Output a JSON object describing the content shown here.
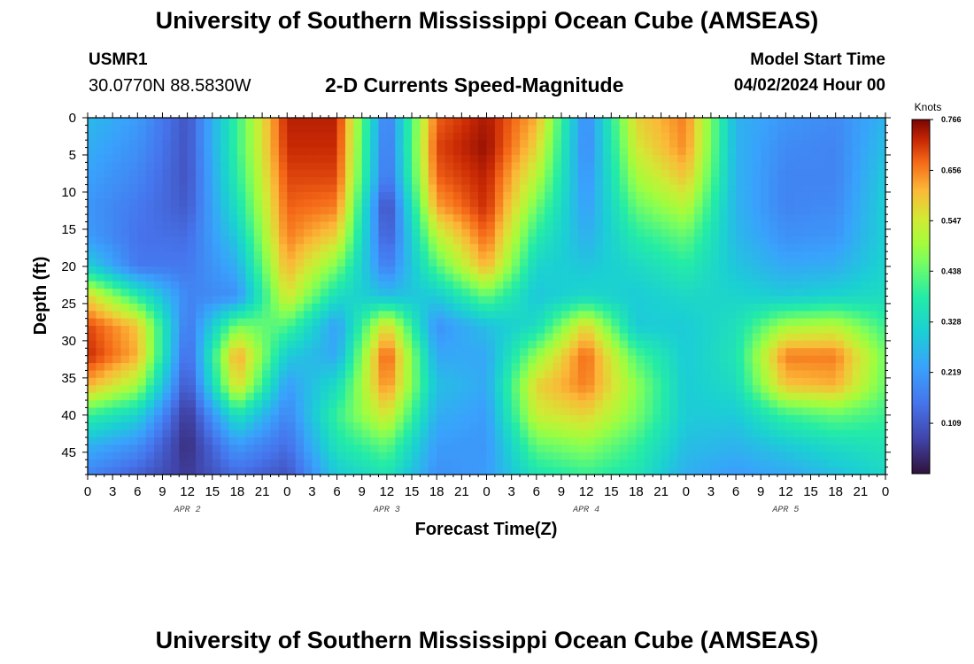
{
  "header": {
    "title": "University of Southern Mississippi Ocean Cube (AMSEAS)",
    "station_id": "USMR1",
    "station_coords": "30.0770N  88.5830W",
    "plot_title": "2-D Currents Speed-Magnitude",
    "model_start_label": "Model Start Time",
    "model_start_time": "04/02/2024 Hour 00"
  },
  "footer": {
    "title": "University of Southern Mississippi Ocean Cube (AMSEAS)"
  },
  "chart_data": {
    "type": "heatmap",
    "title": "2-D Currents Speed-Magnitude",
    "xlabel": "Forecast Time(Z)",
    "ylabel": "Depth (ft)",
    "x_ticks": [
      "0",
      "3",
      "6",
      "9",
      "12",
      "15",
      "18",
      "21",
      "0",
      "3",
      "6",
      "9",
      "12",
      "15",
      "18",
      "21",
      "0",
      "3",
      "6",
      "9",
      "12",
      "15",
      "18",
      "21",
      "0",
      "3",
      "6",
      "9",
      "12",
      "15",
      "18",
      "21",
      "0"
    ],
    "x_range_hours": [
      0,
      96
    ],
    "day_labels": [
      {
        "label": "APR 2",
        "hour": 12
      },
      {
        "label": "APR 3",
        "hour": 36
      },
      {
        "label": "APR 4",
        "hour": 60
      },
      {
        "label": "APR 5",
        "hour": 84
      }
    ],
    "y_ticks": [
      0,
      5,
      10,
      15,
      20,
      25,
      30,
      35,
      40,
      45
    ],
    "y_range_ft": [
      0,
      48
    ],
    "colorbar": {
      "title": "Knots",
      "min": 0.0,
      "max": 0.766,
      "ticks": [
        "0.766",
        "0.656",
        "0.547",
        "0.438",
        "0.328",
        "0.219",
        "0.109"
      ],
      "tick_values": [
        0.766,
        0.656,
        0.547,
        0.438,
        0.328,
        0.219,
        0.109
      ]
    },
    "speed_grid": {
      "units": "knots",
      "hours": [
        0,
        6,
        12,
        18,
        24,
        30,
        36,
        42,
        48,
        54,
        60,
        66,
        72,
        78,
        84,
        90,
        96
      ],
      "depths_ft": [
        0,
        4,
        8,
        12,
        16,
        20,
        24,
        28,
        32,
        36,
        40,
        44,
        48
      ],
      "values": [
        [
          0.27,
          0.22,
          0.1,
          0.4,
          0.73,
          0.73,
          0.15,
          0.68,
          0.74,
          0.62,
          0.18,
          0.58,
          0.66,
          0.26,
          0.21,
          0.19,
          0.26
        ],
        [
          0.25,
          0.2,
          0.1,
          0.4,
          0.72,
          0.72,
          0.14,
          0.7,
          0.75,
          0.58,
          0.18,
          0.55,
          0.65,
          0.26,
          0.19,
          0.18,
          0.28
        ],
        [
          0.23,
          0.18,
          0.1,
          0.38,
          0.7,
          0.7,
          0.13,
          0.68,
          0.73,
          0.52,
          0.2,
          0.5,
          0.6,
          0.26,
          0.18,
          0.18,
          0.3
        ],
        [
          0.21,
          0.16,
          0.11,
          0.35,
          0.68,
          0.66,
          0.07,
          0.63,
          0.72,
          0.45,
          0.22,
          0.44,
          0.52,
          0.26,
          0.18,
          0.19,
          0.31
        ],
        [
          0.22,
          0.15,
          0.14,
          0.3,
          0.66,
          0.58,
          0.1,
          0.52,
          0.68,
          0.38,
          0.25,
          0.38,
          0.44,
          0.27,
          0.2,
          0.21,
          0.31
        ],
        [
          0.31,
          0.16,
          0.16,
          0.25,
          0.62,
          0.46,
          0.16,
          0.42,
          0.62,
          0.32,
          0.29,
          0.33,
          0.38,
          0.29,
          0.24,
          0.25,
          0.32
        ],
        [
          0.58,
          0.38,
          0.18,
          0.2,
          0.56,
          0.34,
          0.28,
          0.3,
          0.44,
          0.29,
          0.33,
          0.3,
          0.33,
          0.32,
          0.3,
          0.32,
          0.34
        ],
        [
          0.7,
          0.6,
          0.15,
          0.46,
          0.42,
          0.22,
          0.58,
          0.2,
          0.28,
          0.34,
          0.58,
          0.3,
          0.3,
          0.35,
          0.5,
          0.52,
          0.4
        ],
        [
          0.72,
          0.62,
          0.12,
          0.64,
          0.3,
          0.24,
          0.7,
          0.24,
          0.24,
          0.48,
          0.68,
          0.42,
          0.3,
          0.36,
          0.66,
          0.66,
          0.45
        ],
        [
          0.62,
          0.5,
          0.09,
          0.58,
          0.22,
          0.34,
          0.66,
          0.28,
          0.24,
          0.58,
          0.66,
          0.48,
          0.3,
          0.34,
          0.6,
          0.62,
          0.44
        ],
        [
          0.4,
          0.32,
          0.05,
          0.36,
          0.18,
          0.4,
          0.56,
          0.25,
          0.22,
          0.54,
          0.58,
          0.46,
          0.3,
          0.3,
          0.4,
          0.44,
          0.4
        ],
        [
          0.26,
          0.2,
          0.04,
          0.22,
          0.14,
          0.36,
          0.44,
          0.22,
          0.21,
          0.44,
          0.48,
          0.4,
          0.28,
          0.26,
          0.3,
          0.34,
          0.36
        ],
        [
          0.18,
          0.12,
          0.06,
          0.14,
          0.1,
          0.3,
          0.36,
          0.2,
          0.22,
          0.36,
          0.4,
          0.36,
          0.25,
          0.22,
          0.24,
          0.28,
          0.33
        ]
      ]
    }
  }
}
